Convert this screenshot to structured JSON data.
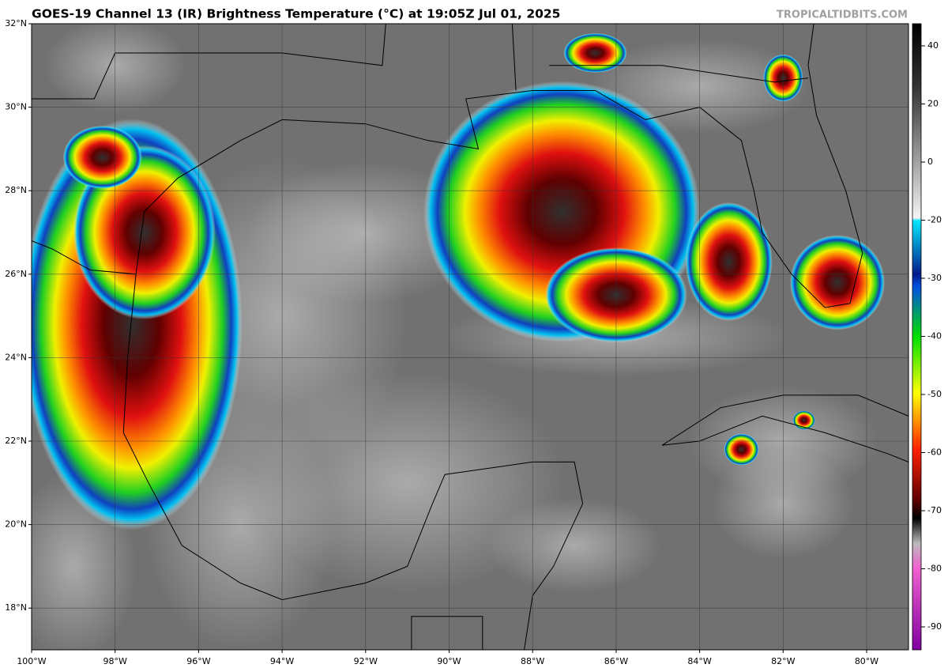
{
  "header": {
    "title": "GOES-19 Channel 13 (IR) Brightness Temperature (°C) at 19:05Z Jul 01, 2025",
    "credit": "TROPICALTIDBITS.COM"
  },
  "map": {
    "lat_labels": [
      "32°N",
      "30°N",
      "28°N",
      "26°N",
      "24°N",
      "22°N",
      "20°N",
      "18°N"
    ],
    "lon_labels": [
      "100°W",
      "98°W",
      "96°W",
      "94°W",
      "92°W",
      "90°W",
      "88°W",
      "86°W",
      "84°W",
      "82°W",
      "80°W"
    ]
  },
  "colorbar": {
    "ticks": [
      40,
      20,
      0,
      -20,
      -30,
      -40,
      -50,
      -60,
      -70,
      -80,
      -90
    ]
  }
}
